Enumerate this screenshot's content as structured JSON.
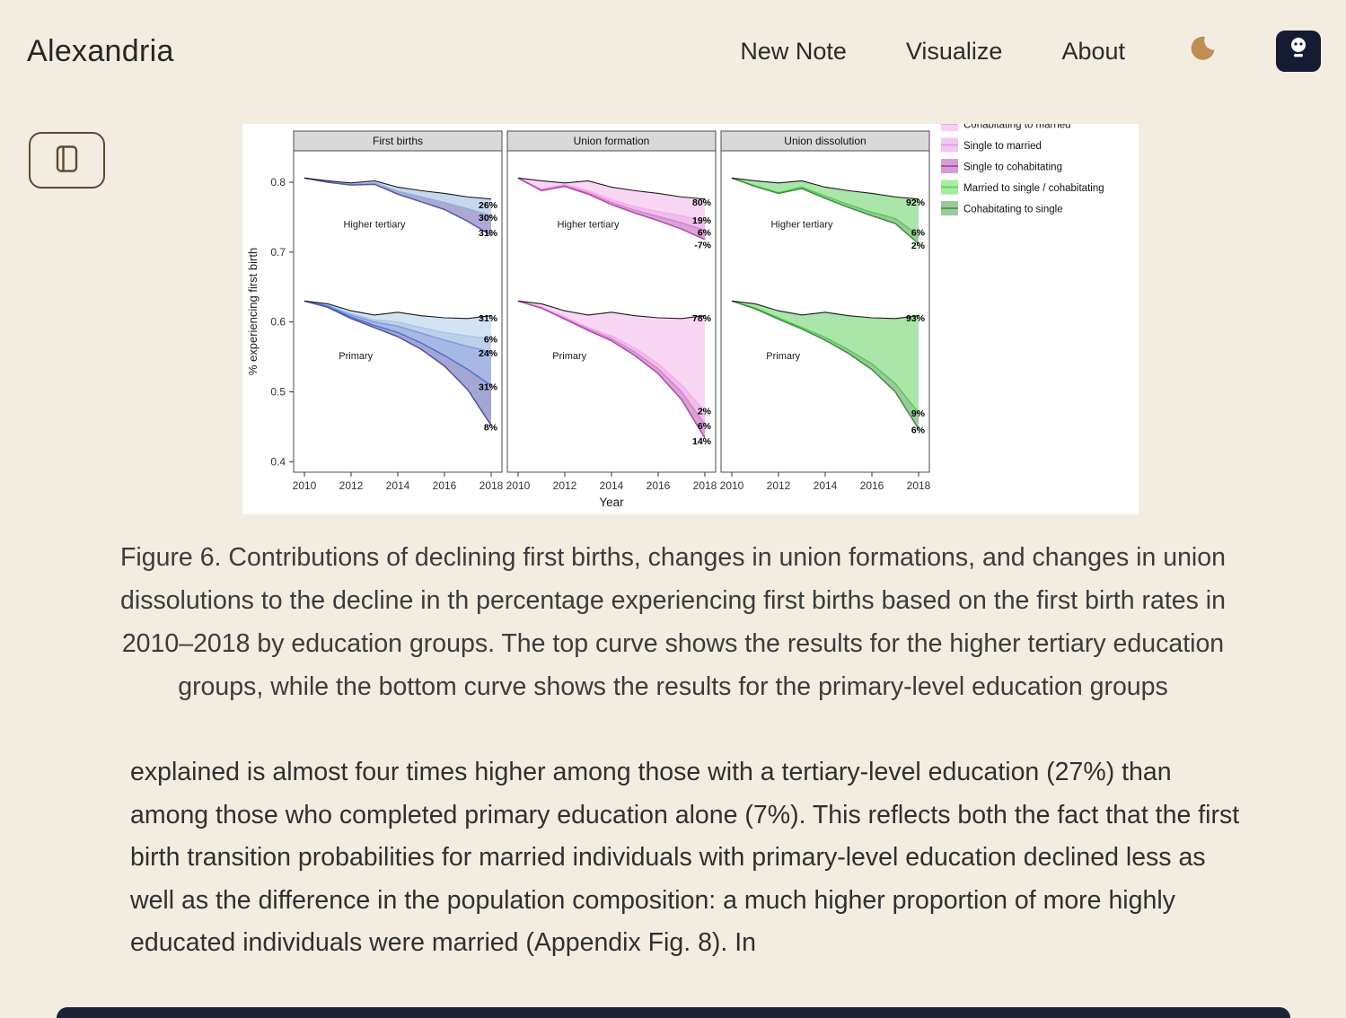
{
  "header": {
    "brand": "Alexandria",
    "nav": [
      {
        "label": "New Note"
      },
      {
        "label": "Visualize"
      },
      {
        "label": "About"
      }
    ]
  },
  "figure": {
    "caption": "Figure 6. Contributions of declining first births, changes in union formations, and changes in union dissolutions to the decline in th percentage experiencing first births based on the first birth rates in 2010–2018 by education groups. The top curve shows the results for the higher tertiary education groups, while the bottom curve shows the results for the primary-level education groups"
  },
  "article": {
    "paragraph": "explained is almost four times higher among those with a tertiary-level education (27%) than among those who completed primary education alone (7%). This reflects both the fact that the first birth transition probabilities for married individuals with primary-level education declined less as well as the difference in the population composition: a much higher proportion of more highly educated individuals were married (Appendix Fig. 8). In"
  },
  "colors": {
    "background": "#f2ece1",
    "moon_accent": "#c08d52",
    "badge_background": "#161b34",
    "button_border": "#5d4a31"
  },
  "chart_data": {
    "type": "line",
    "title": "",
    "xlabel": "Year",
    "ylabel": "% experiencing first birth",
    "x": [
      2010,
      2011,
      2012,
      2013,
      2014,
      2015,
      2016,
      2017,
      2018
    ],
    "xticks": [
      2010,
      2012,
      2014,
      2016,
      2018
    ],
    "yticks": [
      0.4,
      0.5,
      0.6,
      0.7,
      0.8
    ],
    "ylim": [
      0.385,
      0.845
    ],
    "grid": false,
    "legend": {
      "position": "right",
      "entries": [
        {
          "label": "Cohabitating to married",
          "color": "#f0a6ec"
        },
        {
          "label": "Single to married",
          "color": "#e79ae4"
        },
        {
          "label": "Single to cohabitating",
          "color": "#b04fb0"
        },
        {
          "label": "Married to single / cohabitating",
          "color": "#5fdd55"
        },
        {
          "label": "Cohabitating to single",
          "color": "#4d9e4d"
        }
      ]
    },
    "panels": [
      {
        "title": "First births",
        "groups": [
          {
            "name": "Higher tertiary",
            "label_x": 2013,
            "label_y": 0.735,
            "ref": {
              "values": [
                0.806,
                0.802,
                0.799,
                0.802,
                0.793,
                0.788,
                0.784,
                0.779,
                0.776
              ],
              "label": "26%",
              "label_y": 0.768
            },
            "series": [
              {
                "color": "#8fb0dd",
                "values": [
                  0.806,
                  0.801,
                  0.797,
                  0.799,
                  0.787,
                  0.779,
                  0.771,
                  0.762,
                  0.752
                ],
                "label": "30%",
                "label_y": 0.75
              },
              {
                "color": "#5a55a8",
                "values": [
                  0.806,
                  0.8,
                  0.796,
                  0.797,
                  0.783,
                  0.772,
                  0.761,
                  0.744,
                  0.724
                ],
                "label": "31%",
                "label_y": 0.728
              }
            ]
          },
          {
            "name": "Primary",
            "label_x": 2012.2,
            "label_y": 0.547,
            "ref": {
              "values": [
                0.63,
                0.626,
                0.616,
                0.61,
                0.614,
                0.609,
                0.606,
                0.605,
                0.609
              ],
              "label": "31%",
              "label_y": 0.606
            },
            "series": [
              {
                "color": "#aac8e8",
                "values": [
                  0.63,
                  0.624,
                  0.612,
                  0.603,
                  0.6,
                  0.592,
                  0.585,
                  0.58,
                  0.576
                ],
                "label": "6%",
                "label_y": 0.576
              },
              {
                "color": "#7d9fd9",
                "values": [
                  0.63,
                  0.623,
                  0.61,
                  0.6,
                  0.594,
                  0.584,
                  0.574,
                  0.565,
                  0.557
                ],
                "label": "24%",
                "label_y": 0.556
              },
              {
                "color": "#5272cc",
                "values": [
                  0.63,
                  0.622,
                  0.607,
                  0.595,
                  0.585,
                  0.57,
                  0.552,
                  0.532,
                  0.509
                ],
                "label": "31%",
                "label_y": 0.508
              },
              {
                "color": "#4b4fa8",
                "values": [
                  0.63,
                  0.621,
                  0.605,
                  0.592,
                  0.579,
                  0.561,
                  0.537,
                  0.503,
                  0.452
                ],
                "label": "8%",
                "label_y": 0.45
              }
            ]
          }
        ]
      },
      {
        "title": "Union formation",
        "groups": [
          {
            "name": "Higher tertiary",
            "label_x": 2013,
            "label_y": 0.735,
            "ref": {
              "values": [
                0.806,
                0.802,
                0.799,
                0.802,
                0.793,
                0.788,
                0.784,
                0.779,
                0.776
              ],
              "label": "80%",
              "label_y": 0.772
            },
            "series": [
              {
                "color": "#f2aeea",
                "values": [
                  0.806,
                  0.79,
                  0.797,
                  0.788,
                  0.775,
                  0.765,
                  0.758,
                  0.752,
                  0.744
                ],
                "label": "19%",
                "label_y": 0.746
              },
              {
                "color": "#dd7fd4",
                "values": [
                  0.806,
                  0.789,
                  0.795,
                  0.785,
                  0.771,
                  0.76,
                  0.751,
                  0.742,
                  0.731
                ],
                "label": "6%",
                "label_y": 0.729
              },
              {
                "color": "#b04aa8",
                "values": [
                  0.806,
                  0.788,
                  0.794,
                  0.783,
                  0.768,
                  0.756,
                  0.745,
                  0.733,
                  0.718
                ],
                "label": "-7%",
                "label_y": 0.711
              }
            ]
          },
          {
            "name": "Primary",
            "label_x": 2012.2,
            "label_y": 0.547,
            "ref": {
              "values": [
                0.63,
                0.626,
                0.616,
                0.61,
                0.614,
                0.609,
                0.606,
                0.605,
                0.609
              ],
              "label": "78%",
              "label_y": 0.606
            },
            "series": [
              {
                "color": "#f2aeea",
                "values": [
                  0.63,
                  0.621,
                  0.607,
                  0.592,
                  0.58,
                  0.563,
                  0.54,
                  0.51,
                  0.472
                ],
                "label": "2%",
                "label_y": 0.473
              },
              {
                "color": "#dd7fd4",
                "values": [
                  0.63,
                  0.62,
                  0.605,
                  0.59,
                  0.576,
                  0.557,
                  0.533,
                  0.5,
                  0.453
                ],
                "label": "6%",
                "label_y": 0.452
              },
              {
                "color": "#b04aa8",
                "values": [
                  0.63,
                  0.62,
                  0.604,
                  0.588,
                  0.573,
                  0.552,
                  0.526,
                  0.489,
                  0.434
                ],
                "label": "14%",
                "label_y": 0.43
              }
            ]
          }
        ]
      },
      {
        "title": "Union dissolution",
        "groups": [
          {
            "name": "Higher tertiary",
            "label_x": 2013,
            "label_y": 0.735,
            "ref": {
              "values": [
                0.806,
                0.802,
                0.799,
                0.802,
                0.793,
                0.788,
                0.784,
                0.779,
                0.776
              ],
              "label": "92%",
              "label_y": 0.772
            },
            "series": [
              {
                "color": "#55cc55",
                "values": [
                  0.806,
                  0.795,
                  0.785,
                  0.793,
                  0.78,
                  0.768,
                  0.757,
                  0.748,
                  0.724
                ],
                "label": "6%",
                "label_y": 0.729
              },
              {
                "color": "#3d8f3d",
                "values": [
                  0.806,
                  0.794,
                  0.784,
                  0.791,
                  0.777,
                  0.764,
                  0.752,
                  0.741,
                  0.712
                ],
                "label": "2%",
                "label_y": 0.71
              }
            ]
          },
          {
            "name": "Primary",
            "label_x": 2012.2,
            "label_y": 0.547,
            "ref": {
              "values": [
                0.63,
                0.626,
                0.616,
                0.61,
                0.614,
                0.609,
                0.606,
                0.605,
                0.609
              ],
              "label": "93%",
              "label_y": 0.606
            },
            "series": [
              {
                "color": "#55cc55",
                "values": [
                  0.63,
                  0.62,
                  0.606,
                  0.592,
                  0.578,
                  0.56,
                  0.54,
                  0.512,
                  0.47
                ],
                "label": "9%",
                "label_y": 0.47
              },
              {
                "color": "#3d8f3d",
                "values": [
                  0.63,
                  0.619,
                  0.604,
                  0.59,
                  0.574,
                  0.555,
                  0.532,
                  0.5,
                  0.447
                ],
                "label": "6%",
                "label_y": 0.446
              }
            ]
          }
        ]
      }
    ]
  }
}
